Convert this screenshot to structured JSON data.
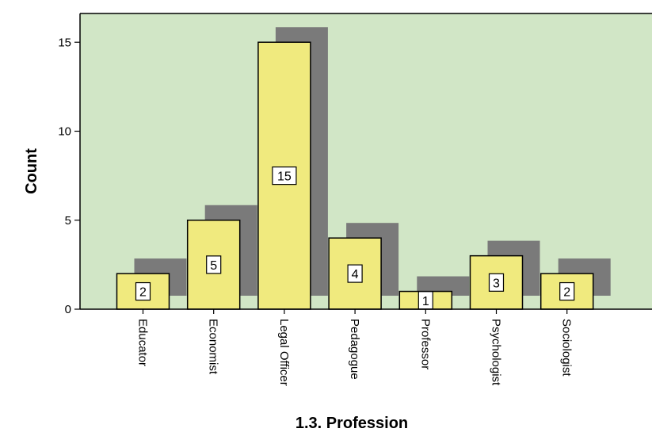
{
  "chart_data": {
    "type": "bar",
    "categories": [
      "Educator",
      "Economist",
      "Legal Officer",
      "Pedagogue",
      "Professor",
      "Psychologist",
      "Sociologist"
    ],
    "values": [
      2,
      5,
      15,
      4,
      1,
      3,
      2
    ],
    "xlabel": "1.3. Profession",
    "ylabel": "Count",
    "ylim": [
      0,
      16
    ],
    "yticks": [
      0,
      5,
      10,
      15
    ],
    "grid": false,
    "data_labels": true,
    "colors": {
      "plot_background": "#d1e6c6",
      "bar_fill": "#f0ea7e",
      "bar_shadow": "#7a7a7a",
      "bar_stroke": "#000000"
    }
  }
}
